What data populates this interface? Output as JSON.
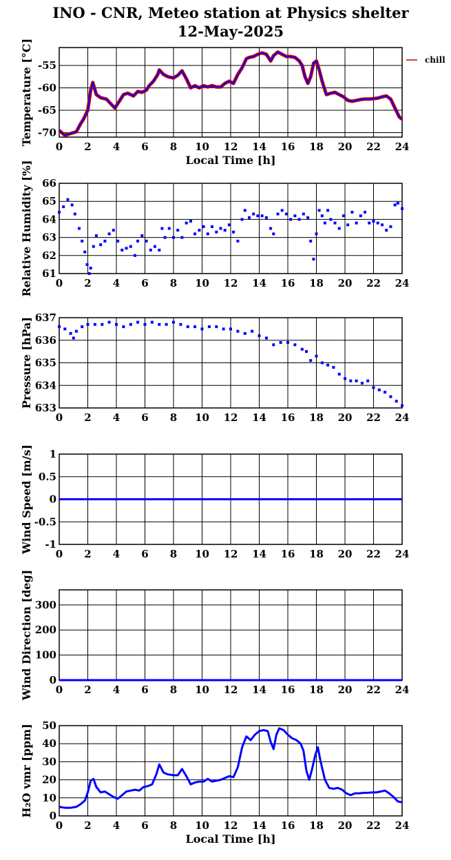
{
  "title": "INO - CNR, Meteo station at Physics shelter",
  "subtitle": "12-May-2025",
  "colors": {
    "main": "#0000ff",
    "chill": "#cc0000",
    "axis": "#000000"
  },
  "chart_data": [
    {
      "type": "line",
      "ylabel": "Temperature [°C]",
      "xlabel": "Local Time [h]",
      "xlim": [
        0,
        24
      ],
      "ylim": [
        -71,
        -51
      ],
      "xticks": [
        0,
        2,
        4,
        6,
        8,
        10,
        12,
        14,
        16,
        18,
        20,
        22,
        24
      ],
      "yticks": [
        -70,
        -65,
        -60,
        -55
      ],
      "legend": "chill",
      "series": [
        {
          "name": "",
          "x": [
            0,
            0.4,
            0.8,
            1.2,
            1.5,
            1.7,
            2.0,
            2.2,
            2.35,
            2.6,
            2.9,
            3.3,
            3.6,
            3.9,
            4.2,
            4.5,
            4.8,
            5.2,
            5.5,
            5.8,
            6.1,
            6.3,
            6.6,
            6.9,
            7.0,
            7.3,
            7.6,
            8.0,
            8.3,
            8.6,
            8.9,
            9.2,
            9.5,
            9.8,
            10.1,
            10.4,
            10.7,
            11.0,
            11.3,
            11.6,
            11.9,
            12.2,
            12.5,
            12.8,
            13.1,
            13.3,
            13.6,
            13.9,
            14.2,
            14.5,
            14.8,
            15.0,
            15.3,
            15.6,
            15.9,
            16.2,
            16.5,
            16.8,
            17.0,
            17.2,
            17.4,
            17.6,
            17.8,
            18.0,
            18.2,
            18.4,
            18.7,
            19.0,
            19.3,
            19.6,
            19.9,
            20.2,
            20.5,
            20.8,
            21.1,
            21.4,
            21.7,
            22.0,
            22.3,
            22.6,
            22.9,
            23.2,
            23.5,
            23.8,
            24.0
          ],
          "values": [
            -69.5,
            -70.6,
            -70.2,
            -69.8,
            -68.0,
            -67.0,
            -65.0,
            -60.5,
            -58.8,
            -61.5,
            -62.2,
            -62.5,
            -63.5,
            -64.5,
            -63.0,
            -61.5,
            -61.2,
            -61.8,
            -60.8,
            -61.0,
            -60.5,
            -59.5,
            -58.5,
            -57.0,
            -56.0,
            -57.0,
            -57.5,
            -57.8,
            -57.2,
            -56.2,
            -58.0,
            -60.0,
            -59.5,
            -60.0,
            -59.5,
            -59.8,
            -59.5,
            -59.8,
            -59.8,
            -59.0,
            -58.5,
            -59.0,
            -57.0,
            -55.5,
            -53.5,
            -53.2,
            -53.0,
            -52.5,
            -52.2,
            -52.5,
            -54.0,
            -52.8,
            -52.0,
            -52.5,
            -53.0,
            -53.0,
            -53.2,
            -54.0,
            -55.0,
            -57.5,
            -59.0,
            -57.5,
            -54.5,
            -54.0,
            -56.0,
            -58.5,
            -61.5,
            -61.2,
            -61.0,
            -61.5,
            -62.0,
            -62.8,
            -63.0,
            -62.8,
            -62.6,
            -62.5,
            -62.5,
            -62.4,
            -62.3,
            -62.0,
            -61.8,
            -62.5,
            -64.5,
            -66.5,
            -67.0
          ]
        }
      ]
    },
    {
      "type": "scatter",
      "ylabel": "Relative Humidity [%]",
      "xlim": [
        0,
        24
      ],
      "ylim": [
        61,
        66
      ],
      "xticks": [
        0,
        2,
        4,
        6,
        8,
        10,
        12,
        14,
        16,
        18,
        20,
        22,
        24
      ],
      "yticks": [
        61,
        62,
        63,
        64,
        65,
        66
      ],
      "series": [
        {
          "name": "",
          "x": [
            0,
            0.3,
            0.6,
            0.9,
            1.1,
            1.4,
            1.6,
            1.8,
            1.95,
            2.1,
            2.2,
            2.4,
            2.6,
            2.9,
            3.2,
            3.5,
            3.8,
            4.1,
            4.4,
            4.7,
            5.0,
            5.3,
            5.5,
            5.8,
            6.1,
            6.4,
            6.7,
            7.0,
            7.2,
            7.4,
            7.7,
            8.0,
            8.3,
            8.6,
            8.9,
            9.2,
            9.5,
            9.8,
            10.1,
            10.4,
            10.7,
            11.0,
            11.3,
            11.6,
            11.9,
            12.2,
            12.5,
            12.8,
            13.0,
            13.3,
            13.6,
            13.9,
            14.2,
            14.5,
            14.8,
            15.0,
            15.3,
            15.6,
            15.9,
            16.2,
            16.5,
            16.8,
            17.1,
            17.4,
            17.6,
            17.8,
            18.0,
            18.2,
            18.4,
            18.6,
            18.8,
            19.0,
            19.3,
            19.6,
            19.9,
            20.2,
            20.5,
            20.8,
            21.1,
            21.4,
            21.7,
            22.0,
            22.3,
            22.6,
            22.9,
            23.2,
            23.5,
            23.7,
            24.0
          ],
          "values": [
            64.4,
            64.7,
            65.1,
            64.8,
            64.3,
            63.5,
            62.8,
            62.2,
            61.5,
            61.0,
            61.3,
            62.5,
            63.1,
            62.6,
            62.8,
            63.2,
            63.4,
            62.8,
            62.3,
            62.4,
            62.5,
            62.0,
            62.8,
            63.1,
            62.8,
            62.3,
            62.5,
            62.3,
            63.5,
            63.0,
            63.5,
            63.0,
            63.4,
            63.0,
            63.8,
            63.9,
            63.2,
            63.4,
            63.6,
            63.2,
            63.6,
            63.3,
            63.5,
            63.4,
            63.7,
            63.3,
            62.8,
            64.0,
            64.5,
            64.1,
            64.3,
            64.2,
            64.2,
            64.1,
            63.5,
            63.2,
            64.3,
            64.5,
            64.3,
            64.0,
            64.2,
            64.0,
            64.3,
            64.1,
            62.8,
            61.8,
            63.2,
            64.5,
            64.2,
            63.8,
            64.5,
            64.0,
            63.8,
            63.5,
            64.2,
            63.7,
            64.4,
            63.8,
            64.2,
            64.4,
            63.8,
            63.9,
            63.8,
            63.7,
            63.4,
            63.6,
            64.8,
            64.9,
            64.6
          ]
        }
      ]
    },
    {
      "type": "scatter",
      "ylabel": "Pressure [hPa]",
      "xlim": [
        0,
        24
      ],
      "ylim": [
        633,
        637
      ],
      "xticks": [
        0,
        2,
        4,
        6,
        8,
        10,
        12,
        14,
        16,
        18,
        20,
        22,
        24
      ],
      "yticks": [
        633,
        634,
        635,
        636,
        637
      ],
      "series": [
        {
          "name": "",
          "x": [
            0,
            0.4,
            0.8,
            1.0,
            1.2,
            1.6,
            2.0,
            2.5,
            3.0,
            3.5,
            4.0,
            4.5,
            5.0,
            5.5,
            6.0,
            6.5,
            7.0,
            7.5,
            8.0,
            8.5,
            9.0,
            9.5,
            10.0,
            10.5,
            11.0,
            11.5,
            12.0,
            12.5,
            13.0,
            13.5,
            14.0,
            14.5,
            15.0,
            15.5,
            16.0,
            16.5,
            17.0,
            17.3,
            17.6,
            18.0,
            18.4,
            18.8,
            19.2,
            19.6,
            20.0,
            20.4,
            20.8,
            21.2,
            21.6,
            22.0,
            22.4,
            22.8,
            23.2,
            23.6,
            24.0
          ],
          "values": [
            636.6,
            636.5,
            636.3,
            636.1,
            636.4,
            636.6,
            636.7,
            636.7,
            636.7,
            636.8,
            636.7,
            636.6,
            636.7,
            636.8,
            636.7,
            636.8,
            636.7,
            636.7,
            636.8,
            636.7,
            636.6,
            636.6,
            636.5,
            636.6,
            636.6,
            636.5,
            636.5,
            636.4,
            636.3,
            636.4,
            636.2,
            636.1,
            635.8,
            635.9,
            635.9,
            635.8,
            635.6,
            635.5,
            635.1,
            635.3,
            635.0,
            634.9,
            634.8,
            634.5,
            634.3,
            634.2,
            634.2,
            634.1,
            634.2,
            633.9,
            633.8,
            633.7,
            633.5,
            633.3,
            633.1
          ]
        }
      ]
    },
    {
      "type": "line",
      "ylabel": "Wind Speed [m/s]",
      "xlim": [
        0,
        24
      ],
      "ylim": [
        -1,
        1
      ],
      "xticks": [
        0,
        2,
        4,
        6,
        8,
        10,
        12,
        14,
        16,
        18,
        20,
        22,
        24
      ],
      "yticks": [
        -1,
        -0.5,
        0,
        0.5,
        1
      ],
      "series": [
        {
          "name": "",
          "x": [
            0,
            24
          ],
          "values": [
            0,
            0
          ]
        }
      ]
    },
    {
      "type": "line",
      "ylabel": "Wind Direction [deg]",
      "xlim": [
        0,
        24
      ],
      "ylim": [
        0,
        360
      ],
      "xticks": [
        0,
        2,
        4,
        6,
        8,
        10,
        12,
        14,
        16,
        18,
        20,
        22,
        24
      ],
      "yticks": [
        0,
        100,
        200,
        300
      ],
      "series": [
        {
          "name": "",
          "x": [
            0,
            24
          ],
          "values": [
            0,
            0
          ]
        }
      ]
    },
    {
      "type": "line",
      "ylabel": "H₂O vmr [ppm]",
      "xlabel": "Local Time [h]",
      "xlim": [
        0,
        24
      ],
      "ylim": [
        0,
        50
      ],
      "xticks": [
        0,
        2,
        4,
        6,
        8,
        10,
        12,
        14,
        16,
        18,
        20,
        22,
        24
      ],
      "yticks": [
        0,
        10,
        20,
        30,
        40,
        50
      ],
      "series": [
        {
          "name": "",
          "x": [
            0,
            0.4,
            0.8,
            1.2,
            1.5,
            1.8,
            2.0,
            2.2,
            2.4,
            2.6,
            2.9,
            3.2,
            3.5,
            3.8,
            4.1,
            4.4,
            4.7,
            5.0,
            5.3,
            5.6,
            5.9,
            6.2,
            6.5,
            6.8,
            7.0,
            7.3,
            7.6,
            8.0,
            8.3,
            8.6,
            8.9,
            9.2,
            9.5,
            9.8,
            10.1,
            10.4,
            10.7,
            11.0,
            11.3,
            11.6,
            11.9,
            12.2,
            12.5,
            12.8,
            13.1,
            13.4,
            13.7,
            14.0,
            14.3,
            14.6,
            14.8,
            15.0,
            15.2,
            15.4,
            15.7,
            16.0,
            16.3,
            16.6,
            16.9,
            17.1,
            17.3,
            17.5,
            17.7,
            17.9,
            18.1,
            18.3,
            18.6,
            18.9,
            19.2,
            19.5,
            19.8,
            20.1,
            20.4,
            20.7,
            21.0,
            21.3,
            21.6,
            21.9,
            22.2,
            22.5,
            22.8,
            23.1,
            23.4,
            23.7,
            24.0
          ],
          "values": [
            5.0,
            4.5,
            4.5,
            5.0,
            6.5,
            8.5,
            13.0,
            19.5,
            20.5,
            16.0,
            13.0,
            13.5,
            12.0,
            10.5,
            9.5,
            11.5,
            13.5,
            14.0,
            14.5,
            14.0,
            16.0,
            16.5,
            17.5,
            23.0,
            28.5,
            24.0,
            23.0,
            22.5,
            22.5,
            26.0,
            22.0,
            17.5,
            18.5,
            19.0,
            19.0,
            20.5,
            19.0,
            19.5,
            20.0,
            21.0,
            22.0,
            21.5,
            27.0,
            38.0,
            44.0,
            42.0,
            45.0,
            47.0,
            47.5,
            47.0,
            41.0,
            37.0,
            45.0,
            48.5,
            47.5,
            45.0,
            43.0,
            42.0,
            40.0,
            36.0,
            25.0,
            20.0,
            26.0,
            33.0,
            38.0,
            30.0,
            20.0,
            15.5,
            15.0,
            15.5,
            14.5,
            12.5,
            11.5,
            12.5,
            12.5,
            12.8,
            12.8,
            13.0,
            13.0,
            13.5,
            14.0,
            12.5,
            10.5,
            8.0,
            7.5
          ]
        }
      ]
    }
  ]
}
